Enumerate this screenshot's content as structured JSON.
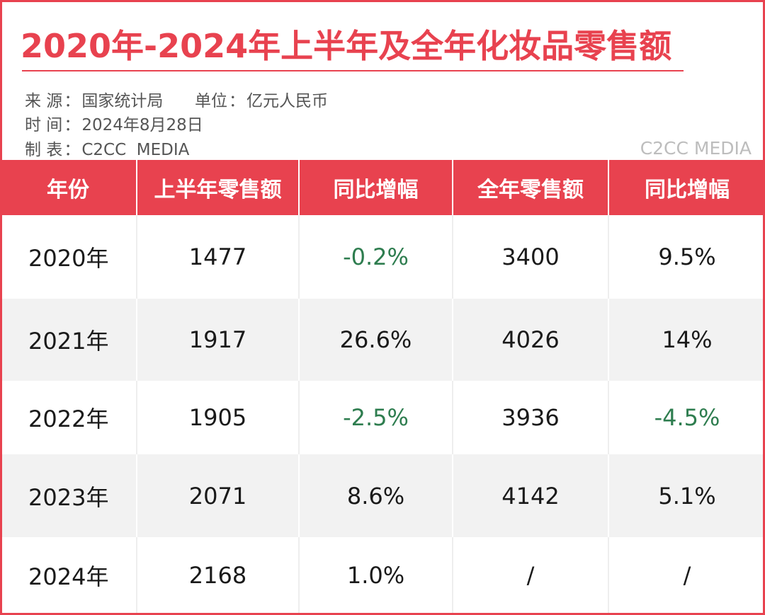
{
  "title": "2020年-2024年上半年及全年化妆品零售额",
  "meta": {
    "source_label": "来 源",
    "source_value": "国家统计局",
    "unit_label": "单位",
    "unit_value": "亿元人民币",
    "time_label": "时 间",
    "time_value": "2024年8月28日",
    "maker_label": "制 表",
    "maker_value": "C2CC  MEDIA",
    "separator": "："
  },
  "brand": "C2CC MEDIA",
  "colors": {
    "accent": "#e8424f",
    "negative": "#2e7d4f",
    "stripe": "#f2f2f2"
  },
  "table": {
    "headers": [
      "年份",
      "上半年零售额",
      "同比增幅",
      "全年零售额",
      "同比增幅"
    ],
    "rows": [
      {
        "year": "2020年",
        "h1": "1477",
        "h1_yoy": "-0.2%",
        "full": "3400",
        "full_yoy": "9.5%"
      },
      {
        "year": "2021年",
        "h1": "1917",
        "h1_yoy": "26.6%",
        "full": "4026",
        "full_yoy": "14%"
      },
      {
        "year": "2022年",
        "h1": "1905",
        "h1_yoy": "-2.5%",
        "full": "3936",
        "full_yoy": "-4.5%"
      },
      {
        "year": "2023年",
        "h1": "2071",
        "h1_yoy": "8.6%",
        "full": "4142",
        "full_yoy": "5.1%"
      },
      {
        "year": "2024年",
        "h1": "2168",
        "h1_yoy": "1.0%",
        "full": "/",
        "full_yoy": "/"
      }
    ]
  }
}
